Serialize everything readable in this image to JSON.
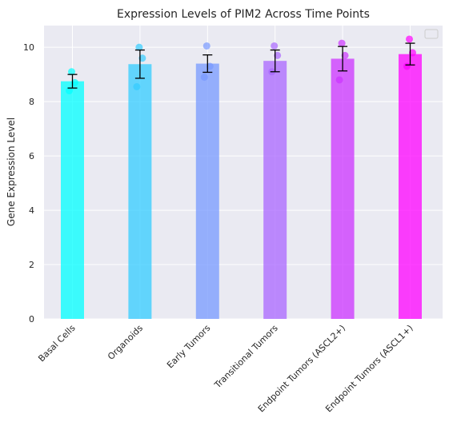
{
  "chart_data": {
    "type": "bar",
    "title": "Expression Levels of PIM2 Across Time Points",
    "xlabel": "",
    "ylabel": "Gene Expression Level",
    "ylim": [
      0,
      10.8
    ],
    "yticks": [
      0,
      2,
      4,
      6,
      8,
      10
    ],
    "grid": true,
    "legend": "top-right (empty)",
    "categories": [
      "Basal Cells",
      "Organoids",
      "Early Tumors",
      "Transitional Tumors",
      "Endpoint Tumors (ASCL2+)",
      "Endpoint Tumors (ASCL1+)"
    ],
    "values": [
      8.75,
      9.38,
      9.4,
      9.5,
      9.58,
      9.75
    ],
    "errors": [
      0.25,
      0.52,
      0.32,
      0.4,
      0.45,
      0.4
    ],
    "colors": [
      "#00FFFF",
      "#33CCFF",
      "#7799FF",
      "#AA66FF",
      "#CC33FF",
      "#FF00FF"
    ],
    "points": [
      [
        8.4,
        8.7,
        9.1
      ],
      [
        8.55,
        9.6,
        10.0
      ],
      [
        8.9,
        9.3,
        10.05
      ],
      [
        9.1,
        9.7,
        10.05
      ],
      [
        8.8,
        9.7,
        10.15
      ],
      [
        9.3,
        9.8,
        10.3
      ]
    ]
  }
}
